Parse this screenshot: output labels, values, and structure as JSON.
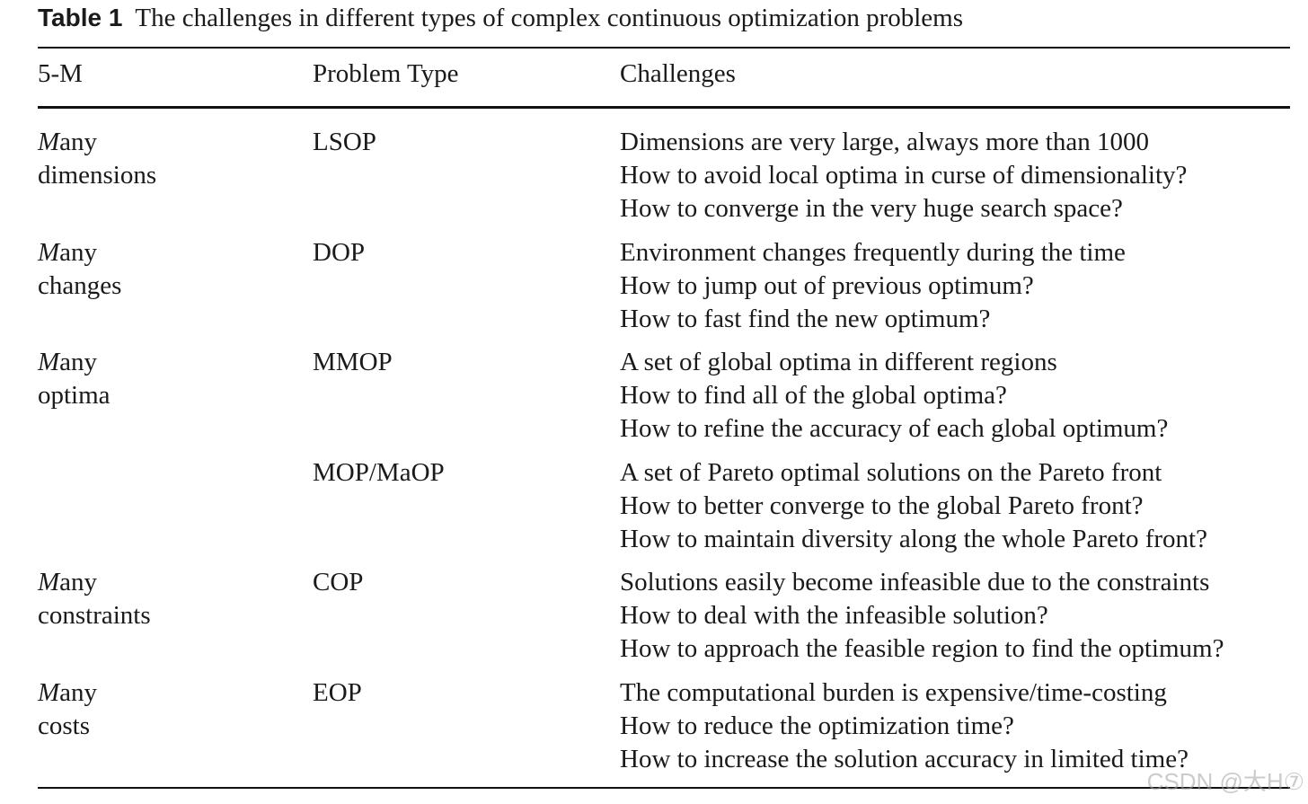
{
  "caption": {
    "label": "Table 1",
    "text": "The challenges in different types of complex continuous optimization problems"
  },
  "header": {
    "col1": "5-M",
    "col2": "Problem Type",
    "col3": "Challenges"
  },
  "rows": [
    {
      "m_initial": "M",
      "m_rest": "any",
      "m_line2": "dimensions",
      "type": "LSOP",
      "challenges": [
        "Dimensions are very large, always more than 1000",
        "How to avoid local optima in curse of dimensionality?",
        "How to converge in the very huge search space?"
      ]
    },
    {
      "m_initial": "M",
      "m_rest": "any",
      "m_line2": "changes",
      "type": "DOP",
      "challenges": [
        "Environment changes frequently during the time",
        "How to jump out of previous optimum?",
        "How to fast find the new optimum?"
      ]
    },
    {
      "m_initial": "M",
      "m_rest": "any",
      "m_line2": "optima",
      "type": "MMOP",
      "challenges": [
        "A set of global optima in different regions",
        "How to find all of the global optima?",
        "How to refine the accuracy of each global optimum?"
      ]
    },
    {
      "m_initial": "",
      "m_rest": "",
      "m_line2": "",
      "type": "MOP/MaOP",
      "challenges": [
        "A set of Pareto optimal solutions on the Pareto front",
        "How to better converge to the global Pareto front?",
        "How to maintain diversity along the whole Pareto front?"
      ]
    },
    {
      "m_initial": "M",
      "m_rest": "any",
      "m_line2": "constraints",
      "type": "COP",
      "challenges": [
        "Solutions easily become infeasible due to the constraints",
        "How to deal with the infeasible solution?",
        "How to approach the feasible region to find the optimum?"
      ]
    },
    {
      "m_initial": "M",
      "m_rest": "any",
      "m_line2": "costs",
      "type": "EOP",
      "challenges": [
        "The computational burden is expensive/time-costing",
        "How to reduce the optimization time?",
        "How to increase the solution accuracy in limited time?"
      ]
    }
  ],
  "watermark": "CSDN @大H⑦"
}
